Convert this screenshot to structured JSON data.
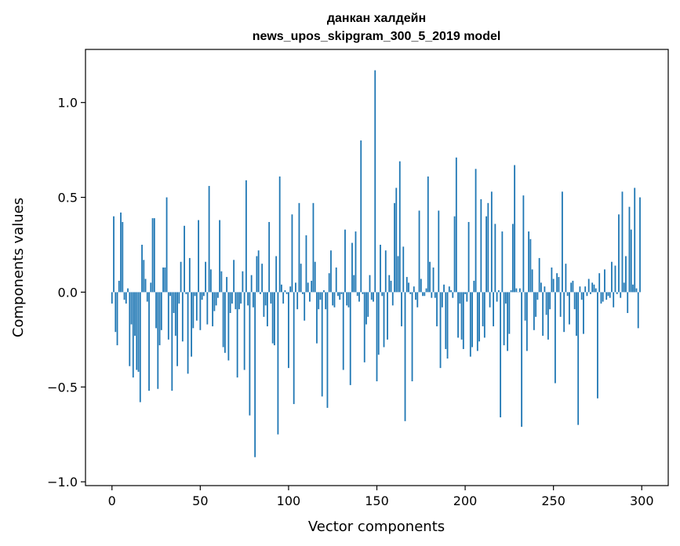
{
  "chart_data": {
    "type": "bar",
    "title": "данкан халдейн",
    "subtitle": "news_upos_skipgram_300_5_2019 model",
    "xlabel": "Vector components",
    "ylabel": "Components values",
    "xlim": [
      -15,
      315
    ],
    "ylim": [
      -1.02,
      1.28
    ],
    "xticks": [
      0,
      50,
      100,
      150,
      200,
      250,
      300
    ],
    "yticks": [
      -1.0,
      -0.5,
      0.0,
      0.5,
      1.0
    ],
    "ytick_labels": [
      "−1.0",
      "−0.5",
      "0.0",
      "0.5",
      "1.0"
    ],
    "grid": false,
    "bar_color": "#1f77b4",
    "values": [
      -0.06,
      0.4,
      -0.21,
      -0.28,
      0.06,
      0.42,
      0.37,
      -0.04,
      -0.06,
      0.02,
      -0.39,
      -0.17,
      -0.45,
      -0.23,
      -0.41,
      -0.42,
      -0.58,
      0.25,
      0.17,
      0.07,
      -0.05,
      -0.52,
      0.05,
      0.39,
      0.39,
      -0.19,
      -0.51,
      -0.28,
      -0.2,
      0.13,
      0.13,
      0.5,
      -0.25,
      -0.02,
      -0.52,
      -0.11,
      -0.23,
      -0.39,
      -0.06,
      0.16,
      -0.26,
      0.35,
      -0.01,
      -0.43,
      0.18,
      -0.34,
      -0.19,
      -0.02,
      -0.15,
      0.38,
      -0.2,
      -0.04,
      -0.02,
      0.16,
      -0.17,
      0.56,
      0.12,
      -0.18,
      -0.1,
      -0.07,
      -0.03,
      0.38,
      0.11,
      -0.29,
      -0.32,
      0.08,
      -0.36,
      -0.11,
      -0.06,
      0.17,
      -0.09,
      -0.45,
      -0.09,
      -0.06,
      0.11,
      -0.41,
      0.59,
      -0.07,
      -0.65,
      0.09,
      -0.08,
      -0.87,
      0.19,
      0.22,
      -0.01,
      0.15,
      -0.13,
      -0.07,
      -0.18,
      0.37,
      -0.06,
      -0.27,
      -0.28,
      0.19,
      -0.75,
      0.61,
      0.04,
      -0.06,
      0.01,
      -0.01,
      -0.4,
      0.03,
      0.41,
      -0.59,
      0.05,
      -0.09,
      0.47,
      0.15,
      -0.01,
      -0.15,
      0.3,
      0.05,
      -0.05,
      0.06,
      0.47,
      0.16,
      -0.27,
      -0.09,
      -0.04,
      -0.55,
      0.01,
      -0.09,
      -0.61,
      0.1,
      0.22,
      -0.07,
      -0.08,
      0.13,
      -0.02,
      -0.04,
      -0.01,
      -0.41,
      0.33,
      -0.07,
      -0.08,
      -0.49,
      0.26,
      0.09,
      0.32,
      -0.02,
      -0.05,
      0.8,
      -0.01,
      -0.37,
      -0.17,
      -0.13,
      0.09,
      -0.04,
      -0.05,
      1.17,
      -0.47,
      -0.33,
      0.25,
      -0.02,
      -0.29,
      0.22,
      -0.25,
      0.09,
      0.06,
      -0.07,
      0.47,
      0.55,
      0.19,
      0.69,
      -0.18,
      0.24,
      -0.68,
      0.08,
      0.05,
      -0.01,
      -0.47,
      0.03,
      -0.04,
      -0.08,
      0.43,
      0.07,
      -0.02,
      -0.02,
      0.02,
      0.61,
      0.16,
      -0.03,
      0.13,
      -0.03,
      -0.18,
      0.43,
      -0.4,
      -0.08,
      0.04,
      -0.3,
      -0.35,
      0.03,
      0.01,
      -0.03,
      0.4,
      0.71,
      -0.24,
      -0.06,
      -0.25,
      -0.3,
      -0.01,
      -0.05,
      0.37,
      -0.34,
      -0.29,
      0.06,
      0.65,
      -0.31,
      -0.26,
      0.49,
      -0.18,
      -0.24,
      0.4,
      0.47,
      -0.08,
      0.53,
      -0.18,
      0.36,
      -0.05,
      0.01,
      -0.66,
      0.32,
      -0.28,
      -0.06,
      -0.31,
      -0.22,
      0.01,
      0.36,
      0.67,
      0.02,
      0.0,
      0.02,
      -0.71,
      0.51,
      -0.15,
      -0.31,
      0.32,
      0.28,
      0.12,
      -0.2,
      -0.13,
      -0.04,
      0.18,
      0.05,
      -0.23,
      0.03,
      -0.12,
      -0.25,
      -0.09,
      0.13,
      0.07,
      -0.48,
      0.1,
      0.08,
      -0.13,
      0.53,
      -0.21,
      0.15,
      -0.02,
      -0.17,
      0.05,
      0.06,
      -0.09,
      -0.23,
      -0.7,
      0.03,
      -0.04,
      -0.22,
      0.03,
      -0.02,
      0.07,
      -0.01,
      0.05,
      0.04,
      0.02,
      -0.56,
      0.1,
      -0.06,
      -0.05,
      0.12,
      -0.04,
      -0.02,
      -0.03,
      0.16,
      -0.08,
      0.14,
      -0.01,
      0.41,
      -0.03,
      0.53,
      0.05,
      0.19,
      -0.11,
      0.45,
      0.33,
      0.04,
      0.55,
      0.02,
      -0.19,
      0.5
    ]
  }
}
